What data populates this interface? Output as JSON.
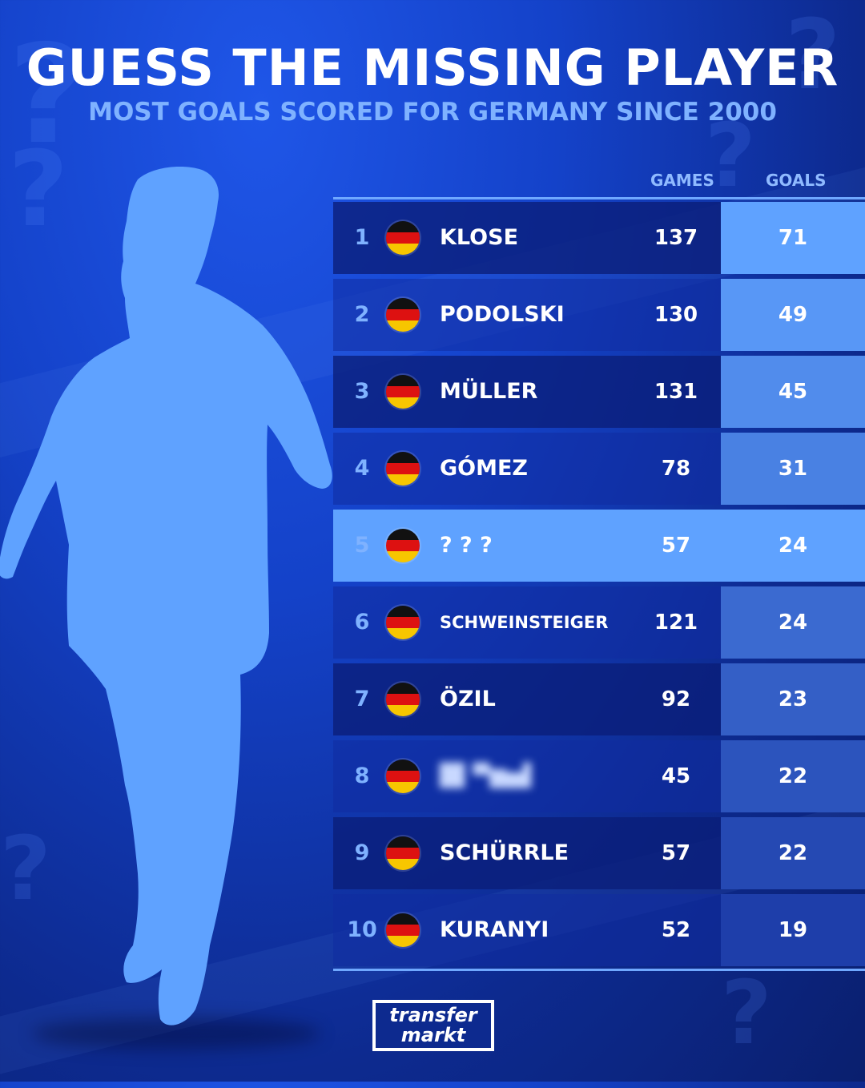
{
  "header": {
    "title": "GUESS THE MISSING PLAYER",
    "subtitle": "MOST GOALS SCORED FOR GERMANY SINCE 2000"
  },
  "table": {
    "columns": {
      "games": "GAMES",
      "goals": "GOALS"
    },
    "rows": [
      {
        "rank": "1",
        "name": "KLOSE",
        "games": "137",
        "goals": "71"
      },
      {
        "rank": "2",
        "name": "PODOLSKI",
        "games": "130",
        "goals": "49"
      },
      {
        "rank": "3",
        "name": "MÜLLER",
        "games": "131",
        "goals": "45"
      },
      {
        "rank": "4",
        "name": "GÓMEZ",
        "games": "78",
        "goals": "31"
      },
      {
        "rank": "5",
        "name": "? ? ?",
        "games": "57",
        "goals": "24"
      },
      {
        "rank": "6",
        "name": "SCHWEINSTEIGER",
        "games": "121",
        "goals": "24"
      },
      {
        "rank": "7",
        "name": "ÖZIL",
        "games": "92",
        "goals": "23"
      },
      {
        "rank": "8",
        "name": "",
        "games": "45",
        "goals": "22"
      },
      {
        "rank": "9",
        "name": "SCHÜRRLE",
        "games": "57",
        "goals": "22"
      },
      {
        "rank": "10",
        "name": "KURANYI",
        "games": "52",
        "goals": "19"
      }
    ],
    "highlighted_rank": "5"
  },
  "logo": {
    "line1": "transfer",
    "line2": "markt"
  },
  "colors": {
    "background": "#1442c9",
    "highlight": "#5fa2ff",
    "silhouette": "#5fa2ff",
    "accent_text": "#7fb2ff",
    "flag": [
      "#111111",
      "#dd1111",
      "#f7c600"
    ]
  },
  "icons": {
    "silhouette": "player-silhouette",
    "flag": "germany-flag-icon"
  }
}
